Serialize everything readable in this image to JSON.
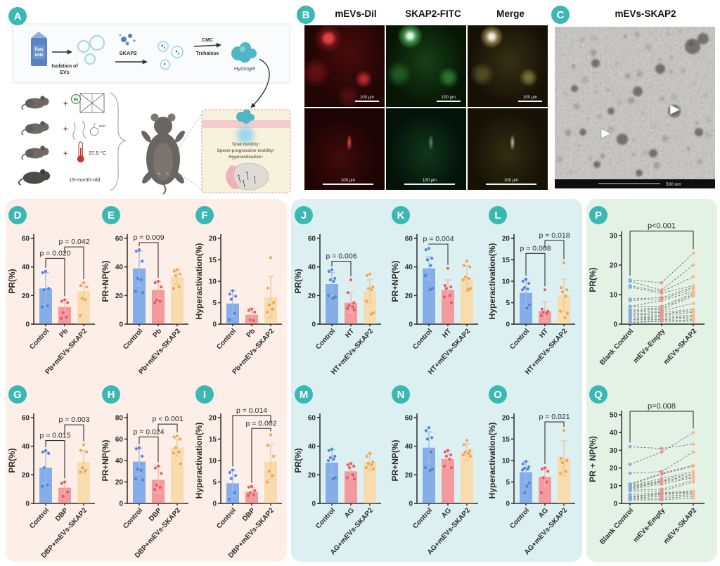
{
  "panel_a": {
    "badge": "A",
    "raw_milk_lines": [
      "Raw",
      "milk"
    ],
    "isolation_lines": [
      "Isolation of",
      "EVs"
    ],
    "skap2_label": "SKAP2",
    "cmc_label": "CMC",
    "trehalose_label": "Trehalose",
    "hydrogel_label": "Hydrogel",
    "plus": "+",
    "pb_label": "Pb",
    "dbp_label": "DBP",
    "temperature_label": "37.5 °C",
    "age_label": "19-month-old",
    "inset_lines": [
      "Total motility↑",
      "Sperm progressive motility↑",
      "Hyperactivation↑"
    ]
  },
  "panel_b": {
    "badge": "B",
    "columns": [
      "mEVs-Dil",
      "SKAP2-FITC",
      "Merge"
    ],
    "scale_label": "100 μm"
  },
  "panel_c": {
    "badge": "C",
    "title": "mEVs-SKAP2",
    "scale_label": "500 nm"
  },
  "colors": {
    "badge": "#3bb8b4",
    "section_pink": "#fdeee7",
    "section_blue": "#dcf0f2",
    "section_green": "#e4f2e5",
    "bars": [
      "#85aee8",
      "#f49a9e",
      "#f8dcae"
    ],
    "dots": [
      "#4d7fd8",
      "#e2595f",
      "#eea24e"
    ],
    "errs": [
      "#9db9e8",
      "#f0b3b5",
      "#edc995"
    ],
    "paired_dots": [
      "#84abe6",
      "#ef8f96",
      "#f4b98e"
    ]
  },
  "chart_data": [
    {
      "id": "D",
      "type": "bar",
      "ylabel": "PR(%)",
      "ylim": [
        0,
        60
      ],
      "yticks": [
        0,
        20,
        40,
        60
      ],
      "categories": [
        "Control",
        "Pb",
        "Pb+mEVs-SKAP2"
      ],
      "values": [
        25,
        12,
        23
      ],
      "errors": [
        11,
        5,
        6
      ],
      "points": [
        [
          37,
          36,
          25,
          24,
          13,
          12
        ],
        [
          17,
          16,
          15,
          8,
          5,
          4
        ],
        [
          29,
          27,
          26,
          18,
          17,
          6
        ]
      ],
      "pvalues": [
        {
          "label": "p = 0.020",
          "from": 0,
          "to": 1,
          "h": 46
        },
        {
          "label": "p = 0.042",
          "from": 1,
          "to": 2,
          "h": 54
        }
      ]
    },
    {
      "id": "E",
      "type": "bar",
      "ylabel": "PR+NP(%)",
      "ylim": [
        0,
        60
      ],
      "yticks": [
        0,
        20,
        40,
        60
      ],
      "categories": [
        "Control",
        "Pb",
        "Pb+mEVs-SKAP2"
      ],
      "values": [
        39,
        24,
        33
      ],
      "errors": [
        12,
        6,
        5
      ],
      "points": [
        [
          52,
          51,
          44,
          32,
          31,
          23,
          22
        ],
        [
          30,
          29,
          26,
          17,
          16,
          15
        ],
        [
          38,
          37,
          35,
          34,
          26,
          25
        ]
      ],
      "pvalues": [
        {
          "label": "p = 0.009",
          "from": 0,
          "to": 1,
          "h": 57
        }
      ]
    },
    {
      "id": "F",
      "type": "bar",
      "ylabel": "Hyperactivation(%)",
      "ylim": [
        0,
        20
      ],
      "yticks": [
        0,
        5,
        10,
        15,
        20
      ],
      "categories": [
        "Control",
        "Pb",
        "Pb+mEVs-SKAP2"
      ],
      "values": [
        4.8,
        2.2,
        6.3
      ],
      "errors": [
        3,
        1.5,
        4.8
      ],
      "points": [
        [
          7.8,
          7,
          6.5,
          5.8,
          2.5,
          1
        ],
        [
          3.5,
          3.2,
          2.8,
          1,
          0.8
        ],
        [
          15.5,
          8.4,
          5,
          4.5,
          3.5,
          2.8
        ]
      ],
      "pvalues": []
    },
    {
      "id": "G",
      "type": "bar",
      "ylabel": "PR(%)",
      "ylim": [
        0,
        60
      ],
      "yticks": [
        0,
        20,
        40,
        60
      ],
      "categories": [
        "Control",
        "DBP",
        "DBP+mEVs-SKAP2"
      ],
      "values": [
        25,
        11,
        29
      ],
      "errors": [
        11,
        4,
        8
      ],
      "points": [
        [
          37,
          36,
          35,
          25,
          13,
          12
        ],
        [
          15,
          14,
          8,
          5
        ],
        [
          41,
          37,
          36,
          25,
          23,
          22
        ]
      ],
      "pvalues": [
        {
          "label": "p = 0.015",
          "from": 0,
          "to": 1,
          "h": 44
        },
        {
          "label": "p = 0.003",
          "from": 1,
          "to": 2,
          "h": 55
        }
      ]
    },
    {
      "id": "H",
      "type": "bar",
      "ylabel": "PR+NP(%)",
      "ylim": [
        0,
        80
      ],
      "yticks": [
        0,
        20,
        40,
        60,
        80
      ],
      "categories": [
        "Control",
        "DBP",
        "DBP+mEVs-SKAP2"
      ],
      "values": [
        39,
        22,
        52
      ],
      "errors": [
        12,
        12,
        8
      ],
      "points": [
        [
          52,
          51,
          44,
          32,
          31,
          23,
          22
        ],
        [
          35,
          33,
          28,
          17,
          15,
          13
        ],
        [
          63,
          62,
          60,
          52,
          48,
          47,
          37
        ]
      ],
      "pvalues": [
        {
          "label": "p = 0.024",
          "from": 0,
          "to": 1,
          "h": 62
        },
        {
          "label": "p < 0.001",
          "from": 1,
          "to": 2,
          "h": 74
        }
      ]
    },
    {
      "id": "I",
      "type": "bar",
      "ylabel": "Hyperactivation(%)",
      "ylim": [
        0,
        20
      ],
      "yticks": [
        0,
        5,
        10,
        15,
        20
      ],
      "categories": [
        "Control",
        "DBP",
        "DBP+mEVs-SKAP2"
      ],
      "values": [
        4.7,
        2.7,
        9.7
      ],
      "errors": [
        3,
        1,
        4
      ],
      "points": [
        [
          7.8,
          7.2,
          6.5,
          5.8,
          2.5,
          1
        ],
        [
          4,
          3.8,
          3,
          2.5,
          2,
          1.8
        ],
        [
          16,
          13.5,
          11,
          7.5,
          6.5,
          5
        ]
      ],
      "pvalues": [
        {
          "label": "p = 0.014",
          "from": 0,
          "to": 2,
          "h": 20.5
        },
        {
          "label": "p = 0.002",
          "from": 1,
          "to": 2,
          "h": 17.5
        }
      ]
    },
    {
      "id": "J",
      "type": "bar",
      "ylabel": "PR(%)",
      "ylim": [
        0,
        60
      ],
      "yticks": [
        0,
        20,
        40,
        60
      ],
      "categories": [
        "Control",
        "HT",
        "HT+mEVs-SKAP2"
      ],
      "values": [
        28,
        15,
        23
      ],
      "errors": [
        8,
        7,
        8
      ],
      "points": [
        [
          38,
          37,
          32,
          31,
          30,
          20,
          19,
          18
        ],
        [
          31,
          22,
          15,
          13,
          12,
          11,
          10
        ],
        [
          35,
          34,
          26,
          25,
          24,
          16,
          8,
          7
        ]
      ],
      "pvalues": [
        {
          "label": "p = 0.006",
          "from": 0,
          "to": 1,
          "h": 44
        }
      ]
    },
    {
      "id": "K",
      "type": "bar",
      "ylabel": "PR+NP(%)",
      "ylim": [
        0,
        60
      ],
      "yticks": [
        0,
        20,
        40,
        60
      ],
      "categories": [
        "Control",
        "HT",
        "HT+mEVs-SKAP2"
      ],
      "values": [
        39,
        24,
        32
      ],
      "errors": [
        8,
        7,
        9
      ],
      "points": [
        [
          53,
          52,
          46,
          45,
          41,
          34,
          25,
          24
        ],
        [
          39,
          27,
          26,
          25,
          20,
          19,
          15
        ],
        [
          44,
          41,
          40,
          33,
          32,
          31,
          25,
          24
        ]
      ],
      "pvalues": [
        {
          "label": "p = 0.004",
          "from": 0,
          "to": 1,
          "h": 56
        }
      ]
    },
    {
      "id": "L",
      "type": "bar",
      "ylabel": "Hyperactivation(%)",
      "ylim": [
        0,
        20
      ],
      "yticks": [
        0,
        5,
        10,
        15,
        20
      ],
      "categories": [
        "Control",
        "HT",
        "HT+mEVs-SKAP2"
      ],
      "values": [
        7.3,
        3.0,
        6.7
      ],
      "errors": [
        3,
        2.2,
        3.8
      ],
      "points": [
        [
          10.5,
          10,
          9.5,
          8.5,
          8.2,
          8,
          4.5,
          3.8
        ],
        [
          8,
          3.5,
          3,
          2.8,
          2.5,
          2
        ],
        [
          14.3,
          8.5,
          8,
          7.5,
          6.5,
          3,
          2.5,
          1.5
        ]
      ],
      "pvalues": [
        {
          "label": "p = 0.008",
          "from": 0,
          "to": 1,
          "h": 16.5
        },
        {
          "label": "p = 0.018",
          "from": 1,
          "to": 2,
          "h": 19.5
        }
      ]
    },
    {
      "id": "M",
      "type": "bar",
      "ylabel": "PR(%)",
      "ylim": [
        0,
        60
      ],
      "yticks": [
        0,
        20,
        40,
        60
      ],
      "categories": [
        "Control",
        "AG",
        "AG+mEVs-SKAP2"
      ],
      "values": [
        28.5,
        22.5,
        29
      ],
      "errors": [
        9,
        5,
        6
      ],
      "points": [
        [
          38,
          37,
          33,
          32,
          31,
          30,
          18,
          17
        ],
        [
          28,
          27,
          26,
          25,
          20,
          18,
          17
        ],
        [
          35,
          33,
          29,
          28,
          27,
          25,
          24
        ]
      ],
      "pvalues": []
    },
    {
      "id": "N",
      "type": "bar",
      "ylabel": "PR+NP(%)",
      "ylim": [
        0,
        60
      ],
      "yticks": [
        0,
        20,
        40,
        60
      ],
      "categories": [
        "Control",
        "AG",
        "AG+mEVs-SKAP2"
      ],
      "values": [
        39,
        31,
        36
      ],
      "errors": [
        11,
        6,
        6
      ],
      "points": [
        [
          53,
          51,
          46,
          45,
          36,
          25,
          24,
          23
        ],
        [
          37,
          36,
          34,
          33,
          31,
          26,
          25
        ],
        [
          44,
          41,
          37,
          36,
          35,
          34,
          33
        ]
      ],
      "pvalues": []
    },
    {
      "id": "O",
      "type": "bar",
      "ylabel": "Hyperactivation(%)",
      "ylim": [
        0,
        20
      ],
      "yticks": [
        0,
        5,
        10,
        15,
        20
      ],
      "categories": [
        "Control",
        "AG",
        "AG+mEVs-SKAP2"
      ],
      "values": [
        7.3,
        6.2,
        10.5
      ],
      "errors": [
        2.4,
        2.2,
        4.1
      ],
      "points": [
        [
          9.8,
          9.2,
          8.5,
          8.2,
          8,
          7.8,
          4.8,
          4,
          2.5
        ],
        [
          8.3,
          8,
          7.5,
          6,
          5,
          2.5
        ],
        [
          17,
          10.5,
          10,
          9.5,
          7.5,
          7
        ]
      ],
      "pvalues": [
        {
          "label": "p = 0.021",
          "from": 1,
          "to": 2,
          "h": 19
        }
      ]
    },
    {
      "id": "P",
      "type": "paired",
      "ylabel": "PR(%)",
      "ylim": [
        0,
        30
      ],
      "yticks": [
        0,
        10,
        20,
        30
      ],
      "categories": [
        "Blank Control",
        "mEVs-Empty",
        "mEVs-SKAP2"
      ],
      "pairs": [
        [
          15,
          14,
          24
        ],
        [
          14.5,
          11.5,
          20
        ],
        [
          13,
          11,
          16
        ],
        [
          12.5,
          10.5,
          13
        ],
        [
          8.5,
          9,
          12.5
        ],
        [
          8,
          8.5,
          12
        ],
        [
          6,
          8,
          11
        ],
        [
          6,
          6,
          10.5
        ],
        [
          5,
          5.5,
          10
        ],
        [
          4.5,
          5,
          9.5
        ],
        [
          4,
          4.5,
          7
        ],
        [
          3.5,
          4,
          5
        ],
        [
          3,
          3.5,
          4.5
        ],
        [
          2.5,
          3,
          4
        ],
        [
          2,
          2.5,
          3
        ],
        [
          2,
          2,
          2.5
        ],
        [
          1.5,
          1.5,
          2
        ],
        [
          1,
          1,
          1.5
        ],
        [
          0.5,
          1,
          1
        ]
      ],
      "pvalue": {
        "label": "p<0.001",
        "from": 0,
        "to": 2,
        "h": 31.5
      }
    },
    {
      "id": "Q",
      "type": "paired",
      "ylabel": "PR + NP(%)",
      "ylim": [
        0,
        50
      ],
      "yticks": [
        0,
        10,
        20,
        30,
        40,
        50
      ],
      "categories": [
        "Blank Control",
        "mEVs-Empty",
        "mEVs-SKAP2"
      ],
      "pairs": [
        [
          32,
          31,
          33.5
        ],
        [
          22,
          29,
          40
        ],
        [
          17,
          18,
          29
        ],
        [
          11,
          17,
          21.5
        ],
        [
          10.5,
          16.5,
          21
        ],
        [
          10,
          14,
          18
        ],
        [
          9.5,
          13,
          17
        ],
        [
          9,
          12.5,
          16
        ],
        [
          8.5,
          12,
          15
        ],
        [
          8,
          11,
          14.5
        ],
        [
          7.5,
          8,
          13
        ],
        [
          7,
          7,
          12
        ],
        [
          5,
          6,
          7
        ],
        [
          4,
          5.5,
          6.5
        ],
        [
          3.5,
          5,
          6
        ],
        [
          3,
          4,
          5
        ],
        [
          2.5,
          3,
          4
        ],
        [
          2,
          2,
          3
        ]
      ],
      "pvalue": {
        "label": "p=0.008",
        "from": 0,
        "to": 2,
        "h": 52
      }
    }
  ]
}
